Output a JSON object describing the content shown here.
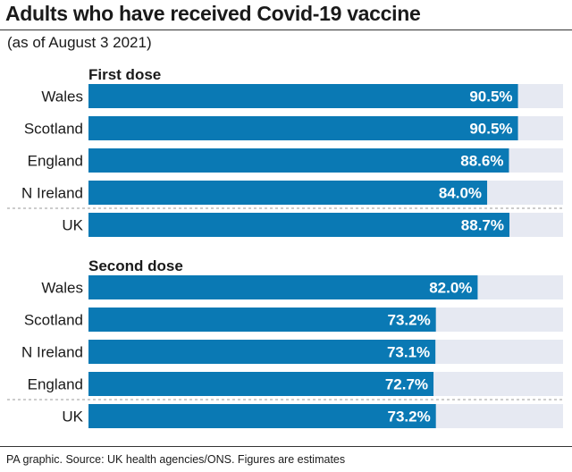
{
  "title": "Adults who have received Covid-19 vaccine",
  "subtitle": "(as of August 3 2021)",
  "source": "PA graphic. Source: UK health agencies/ONS. Figures are estimates",
  "colors": {
    "bar": "#0a79b4",
    "track": "#e6e9f2",
    "text": "#1a1a1a"
  },
  "chart_data": [
    {
      "type": "bar",
      "orientation": "horizontal",
      "title": "First dose",
      "categories": [
        "Wales",
        "Scotland",
        "England",
        "N Ireland",
        "UK"
      ],
      "values": [
        90.5,
        90.5,
        88.6,
        84.0,
        88.7
      ],
      "value_labels": [
        "90.5%",
        "90.5%",
        "88.6%",
        "84.0%",
        "88.7%"
      ],
      "xlim": [
        0,
        100
      ],
      "grid": false
    },
    {
      "type": "bar",
      "orientation": "horizontal",
      "title": "Second dose",
      "categories": [
        "Wales",
        "Scotland",
        "N Ireland",
        "England",
        "UK"
      ],
      "values": [
        82.0,
        73.2,
        73.1,
        72.7,
        73.2
      ],
      "value_labels": [
        "82.0%",
        "73.2%",
        "73.1%",
        "72.7%",
        "73.2%"
      ],
      "xlim": [
        0,
        100
      ],
      "grid": false
    }
  ]
}
